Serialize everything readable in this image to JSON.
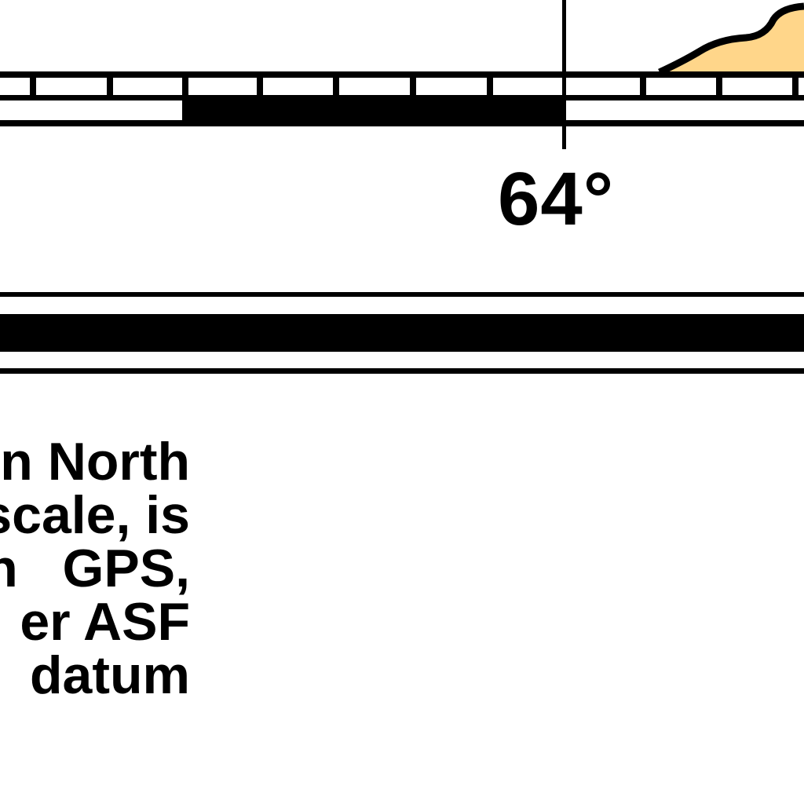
{
  "colors": {
    "ink": "#000000",
    "land": "#ffd68a",
    "paper": "#ffffff"
  },
  "graticule": {
    "longitude_label": "64°"
  },
  "note": {
    "lines": [
      "n North",
      "scale, is",
      "n   GPS,",
      "er ASF",
      ":  datum"
    ]
  }
}
